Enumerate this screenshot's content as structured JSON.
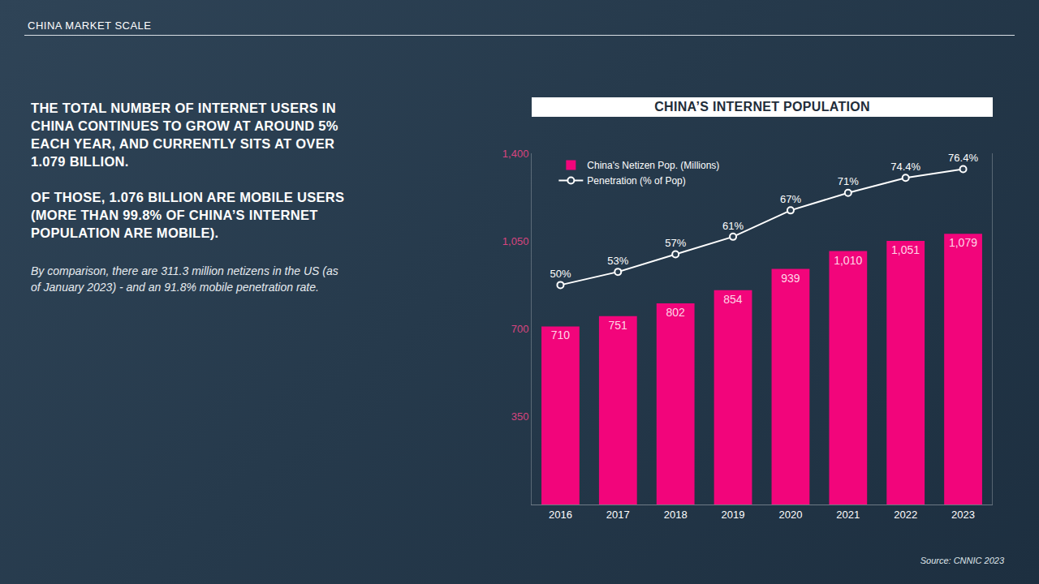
{
  "page": {
    "section": "CHINA MARKET SCALE",
    "paragraphs": [
      "THE TOTAL NUMBER OF INTERNET USERS IN CHINA CONTINUES TO GROW AT AROUND 5% EACH YEAR, AND CURRENTLY SITS AT OVER 1.079 BILLION.",
      "OF THOSE, 1.076 BILLION ARE MOBILE USERS (MORE THAN 99.8% OF CHINA’S INTERNET POPULATION ARE MOBILE)."
    ],
    "note": "By comparison, there are 311.3 million netizens in the US (as of January 2023) - and an 91.8% mobile penetration rate.",
    "source": "Source: CNNIC 2023"
  },
  "chart_data": {
    "type": "bar",
    "title": "CHINA’S INTERNET POPULATION",
    "categories": [
      "2016",
      "2017",
      "2018",
      "2019",
      "2020",
      "2021",
      "2022",
      "2023"
    ],
    "series": [
      {
        "name": "China's Netizen Pop. (Millions)",
        "type": "bar",
        "color": "#f2057b",
        "values": [
          710,
          751,
          802,
          854,
          939,
          1010,
          1051,
          1079
        ],
        "value_labels": [
          "710",
          "751",
          "802",
          "854",
          "939",
          "1,010",
          "1,051",
          "1,079"
        ]
      },
      {
        "name": "Penetration (% of Pop)",
        "type": "line",
        "color": "#ffffff",
        "marker": "circle",
        "axis": "y2",
        "values": [
          50,
          53,
          57,
          61,
          67,
          71,
          74.4,
          76.4
        ],
        "value_labels": [
          "50%",
          "53%",
          "57%",
          "61%",
          "67%",
          "71%",
          "74.4%",
          "76.4%"
        ]
      }
    ],
    "ylim": [
      0,
      1400
    ],
    "yticks": [
      350,
      700,
      {
        "value": 1050,
        "label": "1,050"
      },
      {
        "value": 1400,
        "label": "1,400"
      }
    ],
    "y2lim": [
      0,
      80
    ],
    "y2ticks": [],
    "grid": false,
    "legend": "top left",
    "data_labels": true
  }
}
